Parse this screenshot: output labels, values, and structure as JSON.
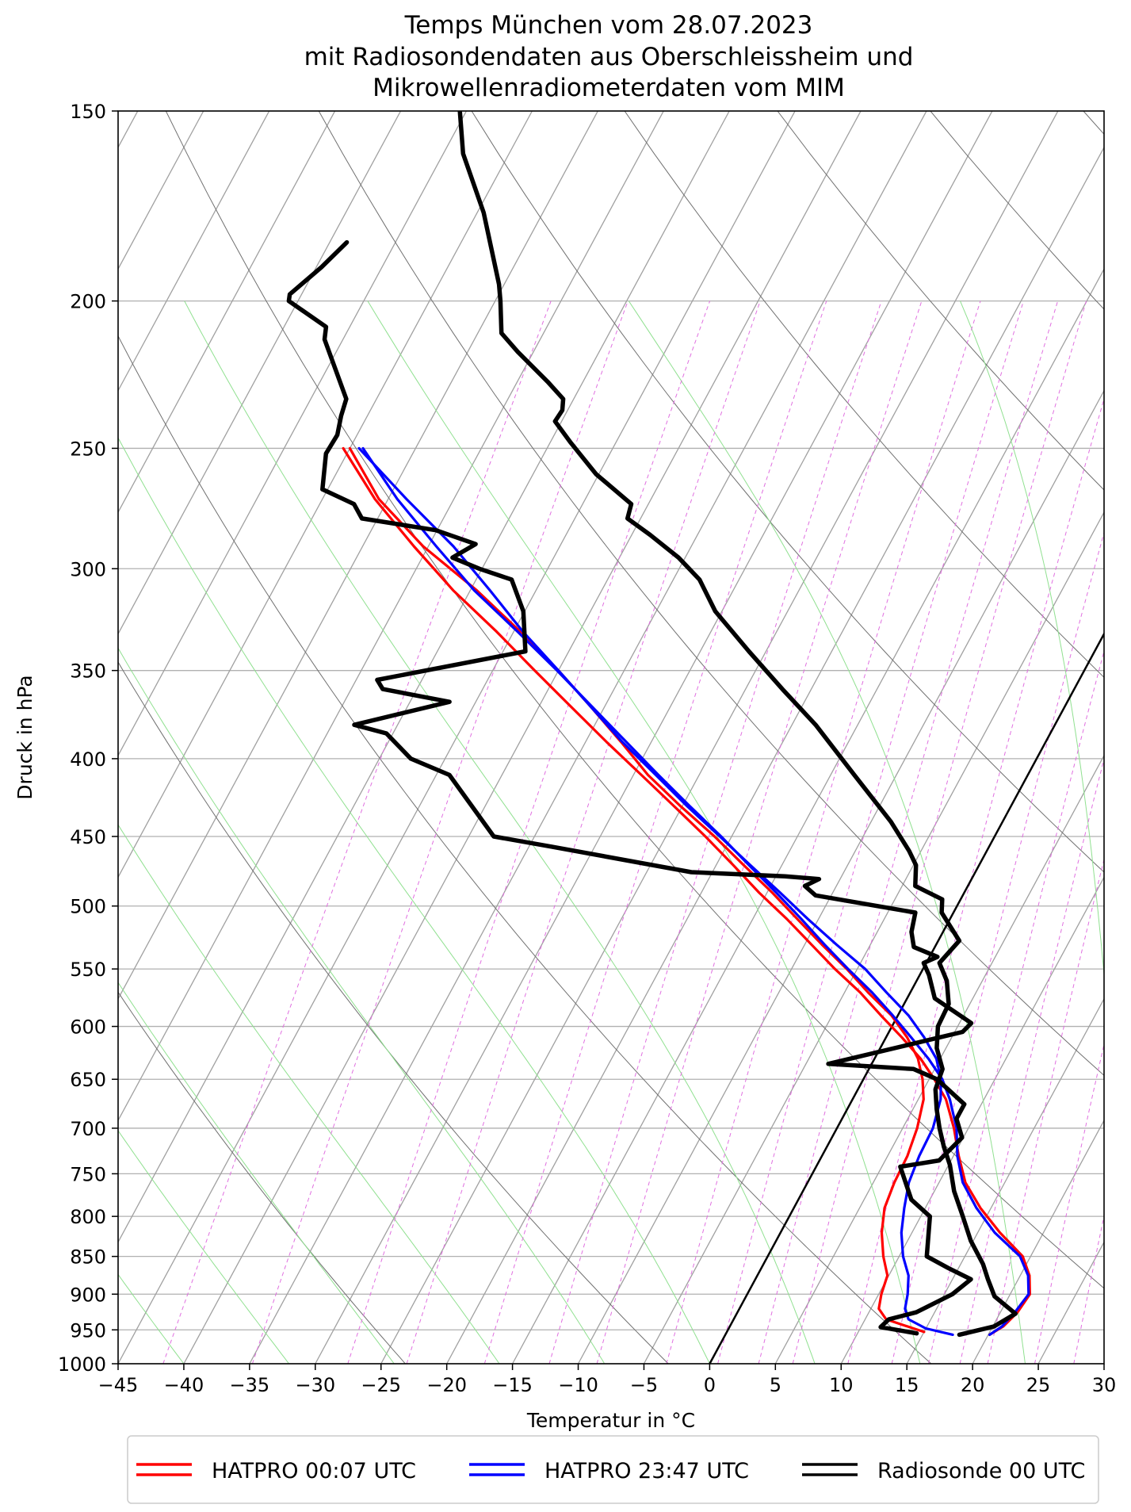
{
  "chart_data": {
    "type": "line",
    "subtype": "skew-t log-p diagram",
    "title_lines": [
      "Temps München vom 28.07.2023",
      "mit Radiosondendaten aus Oberschleissheim und",
      "Mikrowellenradiometerdaten vom MIM"
    ],
    "xlabel": "Temperatur in °C",
    "ylabel": "Druck in hPa",
    "xlim": [
      -45,
      30
    ],
    "ylim": [
      1000,
      150
    ],
    "y_scale": "log",
    "skew_deg_per_decade": 62.5,
    "x_ticks": [
      -45,
      -40,
      -35,
      -30,
      -25,
      -20,
      -15,
      -10,
      -5,
      0,
      5,
      10,
      15,
      20,
      25,
      30
    ],
    "x_tick_labels": [
      "−45",
      "−40",
      "−35",
      "−30",
      "−25",
      "−20",
      "−15",
      "−10",
      "−5",
      "0",
      "5",
      "10",
      "15",
      "20",
      "25",
      "30"
    ],
    "y_ticks": [
      1000,
      950,
      900,
      850,
      800,
      750,
      700,
      650,
      600,
      550,
      500,
      450,
      400,
      350,
      300,
      250,
      200,
      150
    ],
    "y_tick_labels": [
      "1000",
      "950",
      "900",
      "850",
      "800",
      "750",
      "700",
      "650",
      "600",
      "550",
      "500",
      "450",
      "400",
      "350",
      "300",
      "250",
      "200",
      "150"
    ],
    "grid": true,
    "background_lines": {
      "isotherms_color": "#a0a0a0",
      "dry_adiabats_color": "#707070",
      "moist_adiabats_color": "#90e090",
      "mixing_ratio_color": "#e070e0",
      "zero_isotherm_color": "#000000"
    },
    "legend_position": "bottom",
    "series": [
      {
        "name": "HATPRO 00:07 UTC",
        "color": "#ff0000",
        "points": [
          [
            15.0,
            953
          ],
          [
            13.5,
            945
          ],
          [
            11.6,
            935
          ],
          [
            10.6,
            920
          ],
          [
            10.2,
            900
          ],
          [
            9.9,
            875
          ],
          [
            8.8,
            850
          ],
          [
            7.7,
            820
          ],
          [
            6.9,
            790
          ],
          [
            6.6,
            760
          ],
          [
            6.5,
            730
          ],
          [
            6.1,
            700
          ],
          [
            5.4,
            670
          ],
          [
            4.5,
            650
          ],
          [
            3.3,
            630
          ],
          [
            1.6,
            610
          ],
          [
            -0.5,
            590
          ],
          [
            -3.2,
            570
          ],
          [
            -5.8,
            550
          ],
          [
            -8.7,
            530
          ],
          [
            -11.6,
            510
          ],
          [
            -14.6,
            490
          ],
          [
            -17.9,
            470
          ],
          [
            -21.3,
            450
          ],
          [
            -25.1,
            430
          ],
          [
            -28.9,
            410
          ],
          [
            -32.3,
            390
          ],
          [
            -36.0,
            370
          ],
          [
            -40.0,
            350
          ],
          [
            -44.5,
            330
          ],
          [
            -49.5,
            310
          ],
          [
            -55.4,
            290
          ],
          [
            -60.7,
            270
          ],
          [
            -65.0,
            250
          ]
        ]
      },
      {
        "name": "HATPRO 00:07 UTC",
        "color": "#ff0000",
        "points": [
          [
            20.1,
            957
          ],
          [
            20.8,
            945
          ],
          [
            21.3,
            925
          ],
          [
            21.5,
            900
          ],
          [
            20.7,
            875
          ],
          [
            19.4,
            850
          ],
          [
            16.7,
            820
          ],
          [
            14.2,
            790
          ],
          [
            12.0,
            760
          ],
          [
            10.4,
            730
          ],
          [
            8.9,
            700
          ],
          [
            7.1,
            670
          ],
          [
            5.4,
            650
          ],
          [
            3.5,
            630
          ],
          [
            1.2,
            610
          ],
          [
            -1.3,
            590
          ],
          [
            -3.8,
            570
          ],
          [
            -6.7,
            550
          ],
          [
            -9.5,
            530
          ],
          [
            -12.4,
            510
          ],
          [
            -15.6,
            490
          ],
          [
            -18.7,
            470
          ],
          [
            -22.0,
            450
          ],
          [
            -25.6,
            430
          ],
          [
            -29.4,
            410
          ],
          [
            -33.4,
            390
          ],
          [
            -37.5,
            370
          ],
          [
            -41.8,
            350
          ],
          [
            -46.3,
            330
          ],
          [
            -51.3,
            310
          ],
          [
            -56.1,
            290
          ],
          [
            -61.0,
            270
          ],
          [
            -65.5,
            250
          ]
        ]
      },
      {
        "name": "HATPRO 23:47 UTC",
        "color": "#0000ff",
        "points": [
          [
            17.3,
            957
          ],
          [
            15.0,
            948
          ],
          [
            13.3,
            935
          ],
          [
            12.6,
            920
          ],
          [
            12.2,
            900
          ],
          [
            11.5,
            875
          ],
          [
            10.3,
            850
          ],
          [
            9.2,
            820
          ],
          [
            8.4,
            790
          ],
          [
            7.7,
            760
          ],
          [
            7.4,
            730
          ],
          [
            7.3,
            700
          ],
          [
            6.7,
            670
          ],
          [
            5.9,
            650
          ],
          [
            4.7,
            630
          ],
          [
            2.9,
            610
          ],
          [
            0.8,
            590
          ],
          [
            -1.8,
            570
          ],
          [
            -4.4,
            550
          ],
          [
            -7.6,
            530
          ],
          [
            -10.8,
            510
          ],
          [
            -14.0,
            490
          ],
          [
            -17.4,
            470
          ],
          [
            -20.9,
            450
          ],
          [
            -24.6,
            430
          ],
          [
            -28.3,
            410
          ],
          [
            -32.2,
            390
          ],
          [
            -36.0,
            370
          ],
          [
            -40.0,
            350
          ],
          [
            -44.3,
            330
          ],
          [
            -48.5,
            310
          ],
          [
            -53.1,
            290
          ],
          [
            -58.6,
            270
          ],
          [
            -64.3,
            250
          ]
        ]
      },
      {
        "name": "HATPRO 23:47 UTC",
        "color": "#0000ff",
        "points": [
          [
            20.1,
            957
          ],
          [
            20.7,
            945
          ],
          [
            21.1,
            925
          ],
          [
            21.4,
            900
          ],
          [
            20.6,
            875
          ],
          [
            19.2,
            850
          ],
          [
            16.3,
            820
          ],
          [
            13.9,
            790
          ],
          [
            11.8,
            760
          ],
          [
            10.3,
            730
          ],
          [
            9.1,
            700
          ],
          [
            7.4,
            670
          ],
          [
            6.0,
            650
          ],
          [
            4.1,
            630
          ],
          [
            1.9,
            610
          ],
          [
            -0.4,
            590
          ],
          [
            -2.9,
            570
          ],
          [
            -5.7,
            550
          ],
          [
            -8.5,
            530
          ],
          [
            -11.3,
            510
          ],
          [
            -14.3,
            490
          ],
          [
            -17.5,
            470
          ],
          [
            -20.8,
            450
          ],
          [
            -24.4,
            430
          ],
          [
            -28.1,
            410
          ],
          [
            -31.9,
            390
          ],
          [
            -35.9,
            370
          ],
          [
            -40.1,
            350
          ],
          [
            -44.7,
            330
          ],
          [
            -49.7,
            310
          ],
          [
            -54.4,
            290
          ],
          [
            -59.3,
            270
          ],
          [
            -64.0,
            250
          ]
        ]
      },
      {
        "name": "Radiosonde 00 UTC",
        "color": "#000000",
        "points": [
          [
            14.5,
            955
          ],
          [
            11.5,
            946
          ],
          [
            11.8,
            935
          ],
          [
            13.6,
            925
          ],
          [
            15.6,
            900
          ],
          [
            16.4,
            880
          ],
          [
            14.2,
            865
          ],
          [
            12.1,
            850
          ],
          [
            10.7,
            800
          ],
          [
            8.6,
            780
          ],
          [
            6.4,
            742
          ],
          [
            9.1,
            735
          ],
          [
            9.9,
            710
          ],
          [
            8.7,
            690
          ],
          [
            8.7,
            675
          ],
          [
            5.6,
            650
          ],
          [
            3.4,
            640
          ],
          [
            -3.3,
            635
          ],
          [
            5.6,
            605
          ],
          [
            5.9,
            597
          ],
          [
            2.1,
            575
          ],
          [
            0.7,
            555
          ],
          [
            -0.2,
            545
          ],
          [
            0.6,
            540
          ],
          [
            -1.6,
            532
          ],
          [
            -2.4,
            520
          ],
          [
            -2.9,
            505
          ],
          [
            -11.2,
            492
          ],
          [
            -12.4,
            485
          ],
          [
            -11.6,
            480
          ],
          [
            -14.3,
            478
          ],
          [
            -21.6,
            475
          ],
          [
            -33.3,
            457
          ],
          [
            -38.1,
            450
          ],
          [
            -44.0,
            410
          ],
          [
            -47.6,
            400
          ],
          [
            -50.5,
            385
          ],
          [
            -53.3,
            380
          ],
          [
            -47.0,
            367
          ],
          [
            -52.6,
            360
          ],
          [
            -53.4,
            355
          ],
          [
            -43.3,
            340
          ],
          [
            -45.1,
            320
          ],
          [
            -47.3,
            305
          ],
          [
            -50.2,
            300
          ],
          [
            -52.7,
            295
          ],
          [
            -51.5,
            289
          ],
          [
            -55.1,
            283
          ],
          [
            -61.2,
            278
          ],
          [
            -62.4,
            272
          ],
          [
            -65.4,
            266
          ],
          [
            -66.6,
            252
          ],
          [
            -66.5,
            245
          ],
          [
            -67.0,
            238
          ],
          [
            -67.3,
            232
          ],
          [
            -71.4,
            212
          ],
          [
            -71.8,
            208
          ],
          [
            -75.7,
            200
          ],
          [
            -75.9,
            198
          ],
          [
            -74.6,
            190
          ],
          [
            -73.7,
            183
          ]
        ]
      },
      {
        "name": "Radiosonde 00 UTC",
        "color": "#000000",
        "points": [
          [
            17.8,
            957
          ],
          [
            20.1,
            945
          ],
          [
            21.2,
            927
          ],
          [
            18.9,
            903
          ],
          [
            17.7,
            880
          ],
          [
            16.7,
            860
          ],
          [
            14.8,
            830
          ],
          [
            13.2,
            800
          ],
          [
            11.5,
            770
          ],
          [
            10.1,
            740
          ],
          [
            8.9,
            720
          ],
          [
            7.8,
            700
          ],
          [
            6.8,
            680
          ],
          [
            5.9,
            660
          ],
          [
            5.6,
            640
          ],
          [
            4.3,
            620
          ],
          [
            3.5,
            600
          ],
          [
            3.4,
            580
          ],
          [
            2.3,
            560
          ],
          [
            1.0,
            545
          ],
          [
            1.6,
            527
          ],
          [
            -0.9,
            505
          ],
          [
            -1.4,
            495
          ],
          [
            -4.0,
            485
          ],
          [
            -4.8,
            470
          ],
          [
            -5.9,
            460
          ],
          [
            -8.5,
            440
          ],
          [
            -13.2,
            410
          ],
          [
            -18.2,
            380
          ],
          [
            -22.2,
            360
          ],
          [
            -26.3,
            340
          ],
          [
            -30.5,
            320
          ],
          [
            -33.0,
            305
          ],
          [
            -35.5,
            295
          ],
          [
            -38.6,
            285
          ],
          [
            -41.0,
            278
          ],
          [
            -41.3,
            272
          ],
          [
            -45.2,
            260
          ],
          [
            -48.4,
            248
          ],
          [
            -50.5,
            240
          ],
          [
            -50.4,
            236
          ],
          [
            -50.8,
            232
          ],
          [
            -52.7,
            226
          ],
          [
            -56.2,
            216
          ],
          [
            -58.2,
            210
          ],
          [
            -59.6,
            200
          ],
          [
            -60.4,
            195
          ],
          [
            -64.5,
            175
          ],
          [
            -68.5,
            160
          ],
          [
            -70.5,
            150
          ]
        ]
      }
    ],
    "legend": [
      {
        "label": "HATPRO 00:07 UTC",
        "color": "#ff0000"
      },
      {
        "label": "HATPRO 23:47 UTC",
        "color": "#0000ff"
      },
      {
        "label": "Radiosonde 00 UTC",
        "color": "#000000"
      }
    ]
  }
}
